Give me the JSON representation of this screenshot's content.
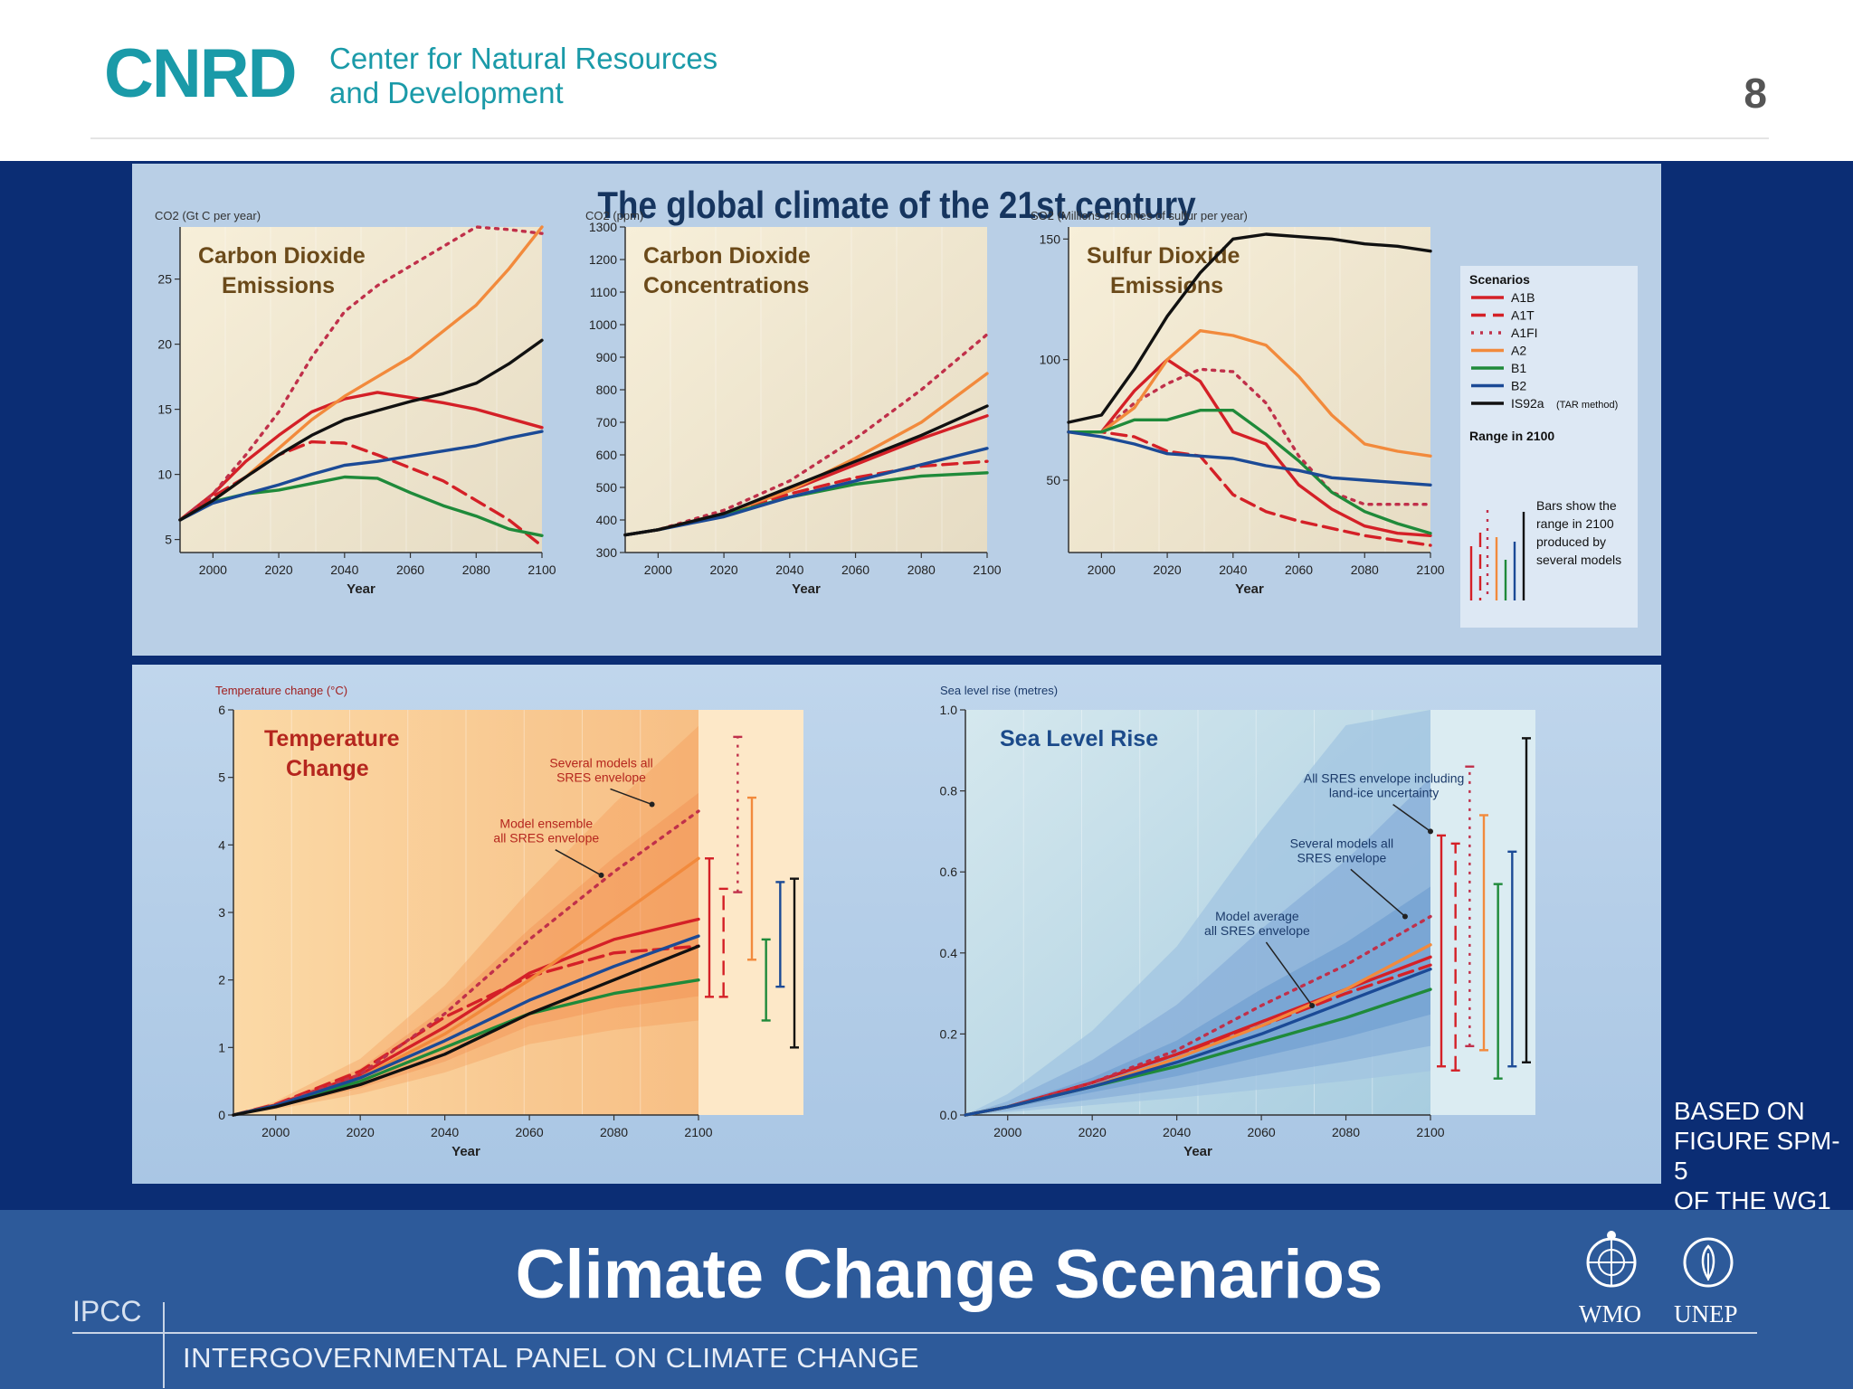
{
  "header": {
    "logo_mark": "CNRD",
    "logo_line1": "Center for Natural Resources",
    "logo_line2": "and Development",
    "page_number": "8"
  },
  "figure": {
    "title": "The global climate of the 21st century"
  },
  "legend": {
    "title": "Scenarios",
    "items": [
      {
        "label": "A1B",
        "color": "#d42027",
        "style": "solid"
      },
      {
        "label": "A1T",
        "color": "#d42027",
        "style": "dashed"
      },
      {
        "label": "A1FI",
        "color": "#c0304a",
        "style": "dotted"
      },
      {
        "label": "A2",
        "color": "#f28a3c",
        "style": "solid"
      },
      {
        "label": "B1",
        "color": "#1f8a3a",
        "style": "solid"
      },
      {
        "label": "B2",
        "color": "#1b4a96",
        "style": "solid"
      },
      {
        "label": "IS92a",
        "suffix": "(TAR method)",
        "color": "#111111",
        "style": "solid"
      }
    ],
    "range_title": "Range in 2100",
    "range_note": [
      "Bars show the",
      "range in 2100",
      "produced by",
      "several models"
    ]
  },
  "chart_data": [
    {
      "type": "line",
      "title": [
        "Carbon Dioxide",
        "Emissions"
      ],
      "ylabel": "CO2 (Gt C per year)",
      "xlabel": "Year",
      "xlim": [
        1990,
        2100
      ],
      "ylim": [
        4,
        29
      ],
      "xticks": [
        2000,
        2020,
        2040,
        2060,
        2080,
        2100
      ],
      "yticks": [
        5,
        10,
        15,
        20,
        25
      ],
      "x": [
        1990,
        2000,
        2010,
        2020,
        2030,
        2040,
        2050,
        2060,
        2070,
        2080,
        2090,
        2100
      ],
      "series": [
        {
          "name": "A1B",
          "values": [
            6.5,
            8.5,
            11,
            13,
            14.8,
            15.8,
            16.3,
            15.9,
            15.5,
            15.0,
            14.3,
            13.6
          ]
        },
        {
          "name": "A1T",
          "values": [
            6.5,
            8.3,
            9.8,
            11.5,
            12.5,
            12.4,
            11.5,
            10.5,
            9.5,
            8.0,
            6.5,
            4.5
          ]
        },
        {
          "name": "A1FI",
          "values": [
            6.5,
            8.5,
            11.5,
            14.8,
            19,
            22.5,
            24.5,
            26,
            27.5,
            29,
            28.8,
            28.5
          ]
        },
        {
          "name": "A2",
          "values": [
            6.5,
            8.0,
            9.8,
            12.0,
            14.2,
            16.0,
            17.5,
            19.0,
            21.0,
            23.0,
            25.8,
            29.0
          ]
        },
        {
          "name": "B1",
          "values": [
            6.5,
            7.9,
            8.5,
            8.8,
            9.3,
            9.8,
            9.7,
            8.6,
            7.6,
            6.8,
            5.8,
            5.3
          ]
        },
        {
          "name": "B2",
          "values": [
            6.5,
            7.8,
            8.5,
            9.2,
            10.0,
            10.7,
            11.0,
            11.4,
            11.8,
            12.2,
            12.8,
            13.3
          ]
        },
        {
          "name": "IS92a",
          "values": [
            6.5,
            8.0,
            9.8,
            11.5,
            13.0,
            14.2,
            14.9,
            15.6,
            16.2,
            17.0,
            18.5,
            20.3
          ]
        }
      ]
    },
    {
      "type": "line",
      "title": [
        "Carbon Dioxide",
        "Concentrations"
      ],
      "ylabel": "CO2 (ppm)",
      "xlabel": "Year",
      "xlim": [
        1990,
        2100
      ],
      "ylim": [
        300,
        1300
      ],
      "xticks": [
        2000,
        2020,
        2040,
        2060,
        2080,
        2100
      ],
      "yticks": [
        300,
        400,
        500,
        600,
        700,
        800,
        900,
        1000,
        1100,
        1200,
        1300
      ],
      "x": [
        1990,
        2000,
        2020,
        2040,
        2060,
        2080,
        2100
      ],
      "series": [
        {
          "name": "A1B",
          "values": [
            354,
            370,
            420,
            490,
            570,
            650,
            720
          ]
        },
        {
          "name": "A1T",
          "values": [
            354,
            370,
            420,
            480,
            530,
            565,
            580
          ]
        },
        {
          "name": "A1FI",
          "values": [
            354,
            370,
            430,
            520,
            650,
            800,
            970
          ]
        },
        {
          "name": "A2",
          "values": [
            354,
            370,
            420,
            490,
            590,
            700,
            850
          ]
        },
        {
          "name": "B1",
          "values": [
            354,
            370,
            415,
            470,
            510,
            535,
            545
          ]
        },
        {
          "name": "B2",
          "values": [
            354,
            370,
            410,
            470,
            520,
            570,
            620
          ]
        },
        {
          "name": "IS92a",
          "values": [
            354,
            370,
            420,
            500,
            580,
            660,
            750
          ]
        }
      ]
    },
    {
      "type": "line",
      "title": [
        "Sulfur Dioxide",
        "Emissions"
      ],
      "ylabel": "SO2 (Millions of tonnes of sulfur per year)",
      "xlabel": "Year",
      "xlim": [
        1990,
        2100
      ],
      "ylim": [
        20,
        155
      ],
      "xticks": [
        2000,
        2020,
        2040,
        2060,
        2080,
        2100
      ],
      "yticks": [
        50,
        100,
        150
      ],
      "x": [
        1990,
        2000,
        2010,
        2020,
        2030,
        2040,
        2050,
        2060,
        2070,
        2080,
        2090,
        2100
      ],
      "series": [
        {
          "name": "A1B",
          "values": [
            70,
            70,
            87,
            100,
            91,
            70,
            65,
            48,
            38,
            31,
            28,
            27
          ]
        },
        {
          "name": "A1T",
          "values": [
            70,
            70,
            68,
            62,
            60,
            44,
            37,
            33,
            30,
            27,
            25,
            23
          ]
        },
        {
          "name": "A1FI",
          "values": [
            70,
            70,
            82,
            90,
            96,
            95,
            82,
            60,
            45,
            40,
            40,
            40
          ]
        },
        {
          "name": "A2",
          "values": [
            70,
            70,
            80,
            100,
            112,
            110,
            106,
            93,
            77,
            65,
            62,
            60
          ]
        },
        {
          "name": "B1",
          "values": [
            70,
            70,
            75,
            75,
            79,
            79,
            69,
            58,
            45,
            37,
            32,
            28
          ]
        },
        {
          "name": "B2",
          "values": [
            70,
            68,
            65,
            61,
            60,
            59,
            56,
            54,
            51,
            50,
            49,
            48
          ]
        },
        {
          "name": "IS92a",
          "values": [
            74,
            77,
            96,
            118,
            136,
            150,
            152,
            151,
            150,
            148,
            147,
            145
          ]
        }
      ]
    },
    {
      "type": "line",
      "title": [
        "Temperature",
        "Change"
      ],
      "ylabel": "Temperature change (°C)",
      "xlabel": "Year",
      "xlim": [
        1990,
        2100
      ],
      "ylim": [
        0,
        6
      ],
      "xticks": [
        2000,
        2020,
        2040,
        2060,
        2080,
        2100
      ],
      "yticks": [
        0,
        1,
        2,
        3,
        4,
        5,
        6
      ],
      "x": [
        1990,
        2000,
        2020,
        2040,
        2060,
        2080,
        2100
      ],
      "series": [
        {
          "name": "A1B",
          "values": [
            0,
            0.15,
            0.6,
            1.3,
            2.1,
            2.6,
            2.9
          ]
        },
        {
          "name": "A1T",
          "values": [
            0,
            0.16,
            0.65,
            1.45,
            2.05,
            2.4,
            2.5
          ]
        },
        {
          "name": "A1FI",
          "values": [
            0,
            0.15,
            0.6,
            1.5,
            2.6,
            3.6,
            4.5
          ]
        },
        {
          "name": "A2",
          "values": [
            0,
            0.14,
            0.55,
            1.2,
            2.0,
            2.9,
            3.8
          ]
        },
        {
          "name": "B1",
          "values": [
            0,
            0.14,
            0.5,
            1.0,
            1.5,
            1.8,
            2.0
          ]
        },
        {
          "name": "B2",
          "values": [
            0,
            0.14,
            0.55,
            1.1,
            1.7,
            2.2,
            2.65
          ]
        },
        {
          "name": "IS92a",
          "values": [
            0,
            0.12,
            0.45,
            0.9,
            1.5,
            2.0,
            2.5
          ]
        }
      ],
      "annotations": [
        [
          "Several models all",
          "SRES envelope"
        ],
        [
          "Model ensemble",
          "all SRES envelope"
        ]
      ],
      "range_bars": [
        {
          "name": "A1B",
          "min": 1.75,
          "max": 3.8
        },
        {
          "name": "A1T",
          "min": 1.75,
          "max": 3.35
        },
        {
          "name": "A1FI",
          "min": 3.3,
          "max": 5.6
        },
        {
          "name": "A2",
          "min": 2.3,
          "max": 4.7
        },
        {
          "name": "B1",
          "min": 1.4,
          "max": 2.6
        },
        {
          "name": "B2",
          "min": 1.9,
          "max": 3.45
        },
        {
          "name": "IS92a",
          "min": 1.0,
          "max": 3.5
        }
      ]
    },
    {
      "type": "line",
      "title": [
        "Sea Level Rise"
      ],
      "ylabel": "Sea level rise (metres)",
      "xlabel": "Year",
      "xlim": [
        1990,
        2100
      ],
      "ylim": [
        0,
        1.0
      ],
      "xticks": [
        2000,
        2020,
        2040,
        2060,
        2080,
        2100
      ],
      "yticks": [
        "0.0",
        "0.2",
        "0.4",
        "0.6",
        "0.8",
        "1.0"
      ],
      "x": [
        1990,
        2000,
        2020,
        2040,
        2060,
        2080,
        2100
      ],
      "series": [
        {
          "name": "A1B",
          "values": [
            0,
            0.02,
            0.08,
            0.15,
            0.23,
            0.31,
            0.39
          ]
        },
        {
          "name": "A1T",
          "values": [
            0,
            0.02,
            0.08,
            0.15,
            0.22,
            0.3,
            0.37
          ]
        },
        {
          "name": "A1FI",
          "values": [
            0,
            0.02,
            0.08,
            0.16,
            0.27,
            0.37,
            0.49
          ]
        },
        {
          "name": "A2",
          "values": [
            0,
            0.02,
            0.07,
            0.14,
            0.22,
            0.31,
            0.42
          ]
        },
        {
          "name": "B1",
          "values": [
            0,
            0.02,
            0.07,
            0.12,
            0.18,
            0.24,
            0.31
          ]
        },
        {
          "name": "B2",
          "values": [
            0,
            0.02,
            0.07,
            0.13,
            0.2,
            0.28,
            0.36
          ]
        }
      ],
      "annotations": [
        [
          "All SRES envelope including",
          "land-ice uncertainty"
        ],
        [
          "Several models all",
          "SRES envelope"
        ],
        [
          "Model average",
          "all SRES envelope"
        ]
      ],
      "range_bars": [
        {
          "name": "A1B",
          "min": 0.12,
          "max": 0.69
        },
        {
          "name": "A1T",
          "min": 0.11,
          "max": 0.67
        },
        {
          "name": "A1FI",
          "min": 0.17,
          "max": 0.86
        },
        {
          "name": "A2",
          "min": 0.16,
          "max": 0.74
        },
        {
          "name": "B1",
          "min": 0.09,
          "max": 0.57
        },
        {
          "name": "B2",
          "min": 0.12,
          "max": 0.65
        },
        {
          "name": "IS92a",
          "min": 0.13,
          "max": 0.93
        }
      ]
    }
  ],
  "side_note": [
    "BASED ON",
    "FIGURE SPM-5",
    "OF THE WG1"
  ],
  "footer": {
    "title": "Climate Change Scenarios",
    "ipcc": "IPCC",
    "ipcc_full": "INTERGOVERNMENTAL PANEL ON CLIMATE CHANGE",
    "org1": "WMO",
    "org2": "UNEP"
  }
}
